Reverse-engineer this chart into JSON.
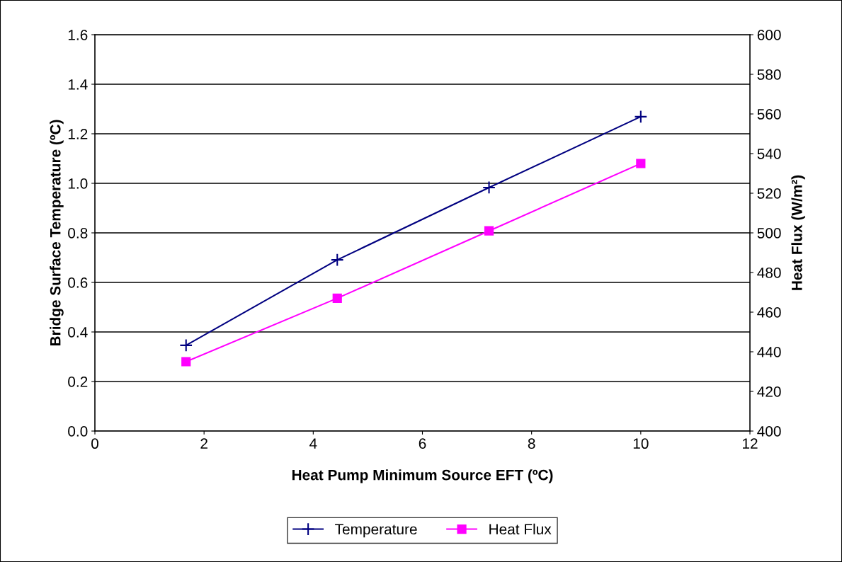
{
  "chart_data": {
    "type": "line",
    "xlabel": "Heat Pump Minimum Source EFT (ºC)",
    "ylabel": "Bridge Surface Temperature (ºC)",
    "y2label": "Heat Flux (W/m²)",
    "x": [
      1.67,
      4.44,
      7.22,
      10
    ],
    "series": [
      {
        "name": "Temperature",
        "color": "#000080",
        "values": [
          0.346,
          0.691,
          0.983,
          1.269
        ],
        "marker": "cross"
      },
      {
        "name": "Heat Flux",
        "color": "#ff00ff",
        "values": [
          435,
          467,
          501,
          535
        ],
        "marker": "square",
        "axis": "y2"
      }
    ],
    "xlim": [
      0,
      12
    ],
    "xticks": [
      0,
      2,
      4,
      6,
      8,
      10,
      12
    ],
    "ylim": [
      0,
      1.6
    ],
    "yticks": [
      {
        "value": 0,
        "label": "0.0"
      },
      0.2,
      0.4,
      0.6,
      0.8,
      {
        "value": 1,
        "label": "1.0"
      },
      1.2,
      1.4,
      1.6
    ],
    "y2lim": [
      400,
      600
    ],
    "y2ticks": [
      400,
      420,
      440,
      460,
      480,
      500,
      520,
      540,
      560,
      580,
      600
    ],
    "grid": "y",
    "legend": "bottom",
    "line_style": "solid"
  }
}
